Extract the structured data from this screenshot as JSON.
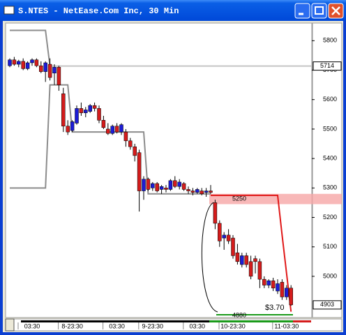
{
  "chart_data": {
    "type": "candlestick",
    "title": "S.NTES - NetEase.Com Inc, 30 Min",
    "categories": [
      null,
      null,
      null,
      null,
      null,
      "03:30",
      null,
      null,
      null,
      null,
      null,
      null,
      null,
      null,
      "8-23:30",
      null,
      null,
      null,
      null,
      null,
      null,
      null,
      null,
      null,
      "03:30",
      null,
      null,
      null,
      null,
      null,
      null,
      null,
      "9-23:30",
      null,
      null,
      null,
      null,
      null,
      null,
      null,
      null,
      null,
      "03:30",
      null,
      null,
      null,
      null,
      null,
      null,
      null,
      "10-23:30",
      null,
      null,
      null,
      null,
      null,
      null,
      null,
      null,
      null,
      null,
      null,
      "11-03:30",
      null
    ],
    "open": [
      5715,
      5735,
      5720,
      5730,
      5705,
      5725,
      5735,
      5715,
      5695,
      5720,
      5690,
      5710,
      5620,
      5510,
      5495,
      5520,
      5570,
      5555,
      5560,
      5580,
      5570,
      5530,
      5500,
      5485,
      5510,
      5490,
      5490,
      5460,
      5440,
      5420,
      5290,
      5330,
      5300,
      5315,
      5295,
      5300,
      5295,
      5325,
      5305,
      5315,
      5295,
      5290,
      5285,
      5290,
      5285,
      5290,
      5250,
      5180,
      5130,
      5140,
      5130,
      5080,
      5040,
      5070,
      5050,
      5060,
      5050,
      4990,
      4970,
      4985,
      4950,
      4980,
      4930,
      4960
    ],
    "high": [
      5740,
      5745,
      5735,
      5740,
      5730,
      5740,
      5740,
      5730,
      5730,
      5740,
      5720,
      5715,
      5640,
      5530,
      5530,
      5580,
      5590,
      5575,
      5585,
      5590,
      5580,
      5545,
      5520,
      5515,
      5520,
      5520,
      5500,
      5470,
      5450,
      5430,
      5340,
      5335,
      5320,
      5320,
      5310,
      5310,
      5330,
      5340,
      5330,
      5320,
      5305,
      5300,
      5300,
      5300,
      5300,
      5310,
      5260,
      5190,
      5150,
      5160,
      5140,
      5110,
      5080,
      5080,
      5070,
      5070,
      5060,
      5000,
      4990,
      4995,
      4990,
      4990,
      4970,
      4970
    ],
    "low": [
      5710,
      5715,
      5710,
      5700,
      5700,
      5715,
      5710,
      5690,
      5660,
      5665,
      5650,
      5630,
      5490,
      5480,
      5490,
      5515,
      5545,
      5540,
      5555,
      5560,
      5520,
      5500,
      5480,
      5480,
      5485,
      5480,
      5440,
      5430,
      5390,
      5220,
      5260,
      5290,
      5290,
      5285,
      5280,
      5285,
      5290,
      5300,
      5295,
      5290,
      5280,
      5275,
      5280,
      5275,
      5270,
      5280,
      5160,
      5100,
      5090,
      5110,
      5060,
      5040,
      5030,
      5030,
      4990,
      5010,
      4960,
      4960,
      4960,
      4950,
      4940,
      4920,
      4920,
      4900
    ],
    "close": [
      5735,
      5720,
      5730,
      5705,
      5725,
      5735,
      5715,
      5695,
      5725,
      5675,
      5710,
      5650,
      5510,
      5490,
      5525,
      5570,
      5555,
      5565,
      5580,
      5570,
      5530,
      5505,
      5485,
      5510,
      5490,
      5515,
      5460,
      5440,
      5410,
      5290,
      5330,
      5295,
      5315,
      5290,
      5305,
      5295,
      5325,
      5305,
      5320,
      5295,
      5290,
      5285,
      5295,
      5280,
      5290,
      5285,
      5180,
      5120,
      5140,
      5120,
      5070,
      5050,
      5070,
      5040,
      5000,
      5050,
      4990,
      4970,
      4985,
      4960,
      4975,
      4930,
      4960,
      4903
    ],
    "up_color": "#1c1cd6",
    "down_color": "#d41c1c",
    "lines": [
      {
        "color": "#8c8c8c",
        "values": [
          5835,
          5835,
          5835,
          5835,
          5835,
          5835,
          5835,
          5835,
          5835,
          5714,
          null,
          null,
          null,
          null,
          null,
          null,
          null,
          null,
          null,
          null,
          null,
          null,
          null,
          null,
          null,
          null,
          null,
          null,
          null,
          null,
          null,
          null,
          null,
          null,
          null,
          null,
          null,
          null,
          null,
          null,
          null,
          null,
          null,
          null,
          null,
          null,
          null,
          null,
          null,
          null,
          null,
          null,
          null,
          null,
          null,
          null,
          null,
          null,
          null,
          null,
          null,
          null,
          null,
          null
        ]
      },
      {
        "color": "#8c8c8c",
        "values": [
          5300,
          5300,
          5300,
          5300,
          5300,
          5300,
          5300,
          5300,
          5300,
          5650,
          5650,
          5650,
          5650,
          5650,
          5490,
          5490,
          5490,
          5490,
          5490,
          5490,
          5490,
          5490,
          5490,
          5490,
          5490,
          5490,
          5490,
          5490,
          5490,
          5490,
          5490,
          5280,
          5280,
          5280,
          5280,
          5280,
          5280,
          5280,
          5280,
          5280,
          5280,
          5280,
          5280,
          5280,
          5280,
          5280,
          null,
          null,
          null,
          null,
          null,
          null,
          null,
          null,
          null,
          null,
          null,
          null,
          null,
          null,
          null,
          null,
          null,
          null
        ]
      },
      {
        "color": "#e01818",
        "values": [
          null,
          null,
          null,
          null,
          null,
          null,
          null,
          null,
          null,
          null,
          null,
          null,
          null,
          null,
          null,
          null,
          null,
          null,
          null,
          null,
          null,
          null,
          null,
          null,
          null,
          null,
          null,
          null,
          null,
          null,
          null,
          null,
          null,
          null,
          null,
          null,
          null,
          null,
          null,
          null,
          null,
          null,
          null,
          null,
          null,
          5275,
          5275,
          5275,
          5275,
          5275,
          5275,
          5275,
          5275,
          5275,
          5275,
          5275,
          5275,
          5275,
          5275,
          5275,
          5275,
          5140,
          5010,
          4880
        ]
      }
    ],
    "reference_line": {
      "value": 5714,
      "color": "#c4c4c4"
    },
    "last_price": 4903,
    "band": {
      "range": [
        5245,
        5280
      ],
      "color": "#f6a6a6"
    },
    "annotations": [
      {
        "text": "5250",
        "color": "#e01818"
      },
      {
        "text": "4880",
        "color": "#2020c0"
      },
      {
        "text": "$3.70",
        "color": "#2020c0"
      }
    ],
    "ylim": [
      4860,
      5860
    ],
    "yticks": [
      5000,
      5100,
      5200,
      5300,
      5400,
      5500,
      5600,
      5700,
      5800
    ],
    "grid": false
  }
}
